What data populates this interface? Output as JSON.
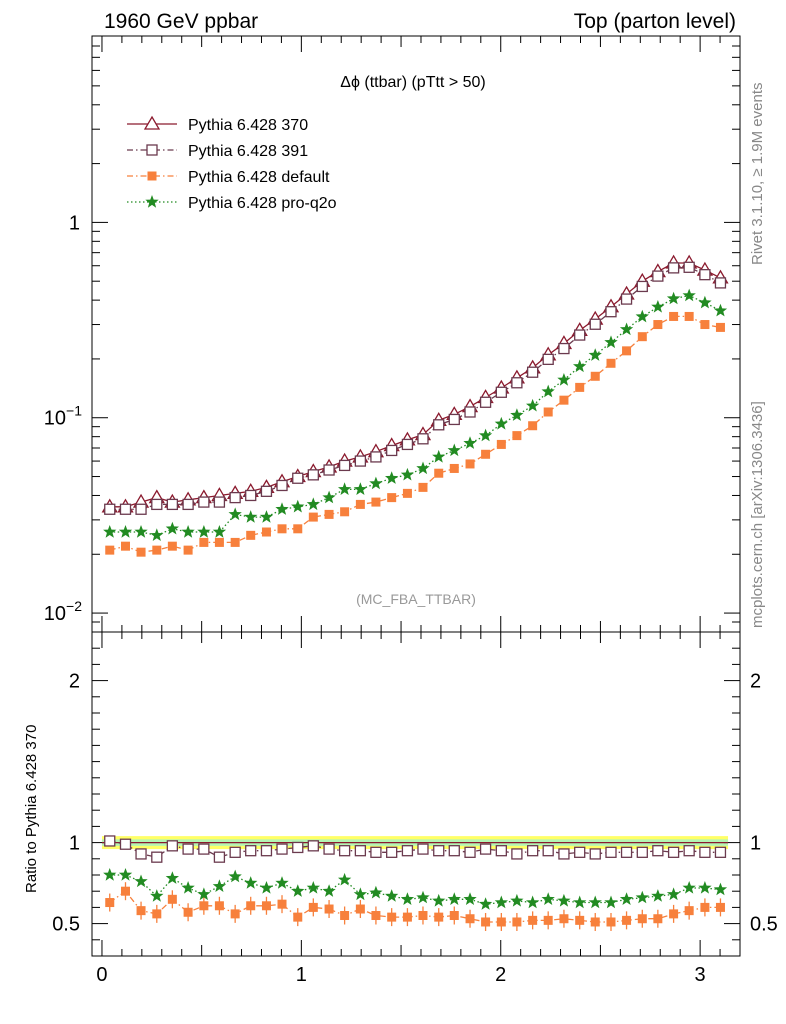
{
  "header": {
    "left": "1960 GeV ppbar",
    "right": "Top (parton level)"
  },
  "side": {
    "rivet": "Rivet 3.1.10, ≥ 1.9M events",
    "mcplots": "mcplots.cern.ch [arXiv:1306.3436]"
  },
  "chart_data": {
    "type": "line",
    "title": "Δϕ (ttbar) (pTtt > 50)",
    "watermark": "(MC_FBA_TTBAR)",
    "xlim": [
      -0.05,
      3.2
    ],
    "x_ticks": [
      "0",
      "1",
      "2",
      "3"
    ],
    "main": {
      "yscale": "log",
      "ylim": [
        0.008,
        9
      ],
      "y_ticks": [
        {
          "base": "1",
          "exp": "",
          "value": 1
        },
        {
          "base": "10",
          "exp": "−1",
          "value": 0.1
        },
        {
          "base": "10",
          "exp": "−2",
          "value": 0.01
        }
      ]
    },
    "ratio": {
      "ylabel": "Ratio to Pythia 6.428 370",
      "ylim": [
        0.3,
        2.3
      ],
      "y_ticks": [
        "0.5",
        "1",
        "2"
      ],
      "y_tick_values": [
        0.5,
        1,
        2
      ]
    },
    "x": [
      0.039,
      0.118,
      0.196,
      0.275,
      0.353,
      0.432,
      0.511,
      0.589,
      0.668,
      0.746,
      0.825,
      0.903,
      0.982,
      1.06,
      1.139,
      1.217,
      1.296,
      1.374,
      1.453,
      1.532,
      1.61,
      1.689,
      1.767,
      1.846,
      1.924,
      2.003,
      2.081,
      2.16,
      2.238,
      2.317,
      2.396,
      2.474,
      2.553,
      2.631,
      2.71,
      2.788,
      2.867,
      2.945,
      3.024,
      3.102
    ],
    "series": [
      {
        "name": "Pythia 6.428 370",
        "color": "#8b1a2e",
        "marker": "triangle-open",
        "line": "solid",
        "values": [
          0.035,
          0.035,
          0.037,
          0.039,
          0.037,
          0.038,
          0.039,
          0.04,
          0.041,
          0.042,
          0.044,
          0.047,
          0.05,
          0.053,
          0.056,
          0.06,
          0.063,
          0.067,
          0.072,
          0.077,
          0.082,
          0.097,
          0.104,
          0.114,
          0.127,
          0.142,
          0.16,
          0.18,
          0.21,
          0.24,
          0.28,
          0.32,
          0.37,
          0.43,
          0.5,
          0.56,
          0.62,
          0.62,
          0.57,
          0.52
        ],
        "ratio": [
          1.0,
          1.0,
          1.0,
          1.0,
          1.0,
          1.0,
          1.0,
          1.0,
          1.0,
          1.0,
          1.0,
          1.0,
          1.0,
          1.0,
          1.0,
          1.0,
          1.0,
          1.0,
          1.0,
          1.0,
          1.0,
          1.0,
          1.0,
          1.0,
          1.0,
          1.0,
          1.0,
          1.0,
          1.0,
          1.0,
          1.0,
          1.0,
          1.0,
          1.0,
          1.0,
          1.0,
          1.0,
          1.0,
          1.0,
          1.0
        ]
      },
      {
        "name": "Pythia 6.428 391",
        "color": "#6b3a4e",
        "marker": "square-open",
        "line": "dashdot",
        "values": [
          0.034,
          0.034,
          0.034,
          0.036,
          0.036,
          0.036,
          0.037,
          0.037,
          0.039,
          0.04,
          0.042,
          0.045,
          0.049,
          0.051,
          0.054,
          0.057,
          0.06,
          0.063,
          0.068,
          0.073,
          0.078,
          0.092,
          0.098,
          0.107,
          0.12,
          0.135,
          0.151,
          0.171,
          0.199,
          0.226,
          0.265,
          0.301,
          0.349,
          0.405,
          0.47,
          0.531,
          0.585,
          0.589,
          0.54,
          0.49
        ],
        "ratio": [
          1.01,
          0.99,
          0.93,
          0.91,
          0.98,
          0.96,
          0.96,
          0.91,
          0.94,
          0.95,
          0.95,
          0.96,
          0.97,
          0.98,
          0.96,
          0.95,
          0.95,
          0.94,
          0.94,
          0.95,
          0.96,
          0.95,
          0.95,
          0.94,
          0.96,
          0.95,
          0.93,
          0.95,
          0.95,
          0.93,
          0.94,
          0.93,
          0.94,
          0.94,
          0.94,
          0.95,
          0.94,
          0.95,
          0.94,
          0.94
        ]
      },
      {
        "name": "Pythia 6.428 default",
        "color": "#f7803c",
        "marker": "square-filled",
        "line": "dashdot",
        "values": [
          0.021,
          0.022,
          0.0205,
          0.021,
          0.022,
          0.021,
          0.023,
          0.023,
          0.023,
          0.025,
          0.026,
          0.027,
          0.027,
          0.031,
          0.032,
          0.033,
          0.036,
          0.037,
          0.039,
          0.041,
          0.044,
          0.052,
          0.055,
          0.058,
          0.065,
          0.073,
          0.081,
          0.091,
          0.107,
          0.123,
          0.143,
          0.163,
          0.19,
          0.22,
          0.26,
          0.3,
          0.33,
          0.33,
          0.3,
          0.29
        ],
        "ratio": [
          0.63,
          0.7,
          0.58,
          0.56,
          0.65,
          0.57,
          0.61,
          0.61,
          0.56,
          0.61,
          0.61,
          0.62,
          0.54,
          0.6,
          0.59,
          0.55,
          0.59,
          0.55,
          0.54,
          0.54,
          0.55,
          0.54,
          0.55,
          0.53,
          0.51,
          0.51,
          0.51,
          0.52,
          0.52,
          0.53,
          0.52,
          0.51,
          0.51,
          0.52,
          0.53,
          0.53,
          0.56,
          0.58,
          0.6,
          0.6
        ]
      },
      {
        "name": "Pythia 6.428 pro-q2o",
        "color": "#228b22",
        "marker": "star",
        "line": "dotted",
        "values": [
          0.026,
          0.026,
          0.026,
          0.025,
          0.027,
          0.026,
          0.026,
          0.026,
          0.032,
          0.031,
          0.031,
          0.034,
          0.035,
          0.036,
          0.039,
          0.043,
          0.043,
          0.046,
          0.049,
          0.051,
          0.055,
          0.063,
          0.068,
          0.074,
          0.081,
          0.093,
          0.103,
          0.115,
          0.136,
          0.156,
          0.183,
          0.209,
          0.243,
          0.283,
          0.329,
          0.369,
          0.407,
          0.422,
          0.388,
          0.353
        ],
        "ratio": [
          0.8,
          0.8,
          0.76,
          0.67,
          0.78,
          0.72,
          0.68,
          0.73,
          0.79,
          0.75,
          0.72,
          0.75,
          0.7,
          0.72,
          0.7,
          0.77,
          0.68,
          0.69,
          0.67,
          0.65,
          0.66,
          0.64,
          0.65,
          0.65,
          0.62,
          0.63,
          0.64,
          0.63,
          0.65,
          0.64,
          0.63,
          0.63,
          0.63,
          0.65,
          0.66,
          0.67,
          0.68,
          0.72,
          0.72,
          0.71
        ]
      }
    ]
  }
}
